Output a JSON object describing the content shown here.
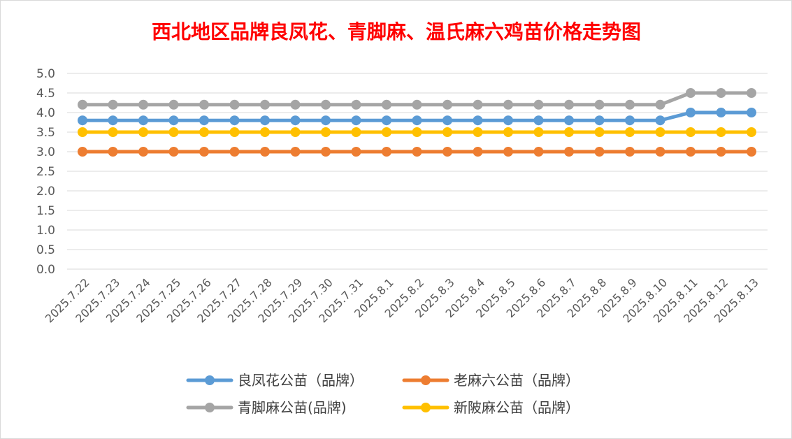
{
  "chart_data": {
    "type": "line",
    "title": "西北地区品牌良凤花、青脚麻、温氏麻六鸡苗价格走势图",
    "xlabel": "",
    "ylabel": "",
    "ylim": [
      0,
      5
    ],
    "yticks": [
      "0.0",
      "0.5",
      "1.0",
      "1.5",
      "2.0",
      "2.5",
      "3.0",
      "3.5",
      "4.0",
      "4.5",
      "5.0"
    ],
    "grid": true,
    "legend_position": "bottom",
    "categories": [
      "2025.7.22",
      "2025.7.23",
      "2025.7.24",
      "2025.7.25",
      "2025.7.26",
      "2025.7.27",
      "2025.7.28",
      "2025.7.29",
      "2025.7.30",
      "2025.7.31",
      "2025.8.1",
      "2025.8.2",
      "2025.8.3",
      "2025.8.4",
      "2025.8.5",
      "2025.8.6",
      "2025.8.7",
      "2025.8.8",
      "2025.8.9",
      "2025.8.10",
      "2025.8.11",
      "2025.8.12",
      "2025.8.13"
    ],
    "series": [
      {
        "name": "良凤花公苗（品牌）",
        "color": "#5b9bd5",
        "values": [
          3.8,
          3.8,
          3.8,
          3.8,
          3.8,
          3.8,
          3.8,
          3.8,
          3.8,
          3.8,
          3.8,
          3.8,
          3.8,
          3.8,
          3.8,
          3.8,
          3.8,
          3.8,
          3.8,
          3.8,
          4.0,
          4.0,
          4.0
        ]
      },
      {
        "name": "老麻六公苗（品牌）",
        "color": "#ed7d31",
        "values": [
          3.0,
          3.0,
          3.0,
          3.0,
          3.0,
          3.0,
          3.0,
          3.0,
          3.0,
          3.0,
          3.0,
          3.0,
          3.0,
          3.0,
          3.0,
          3.0,
          3.0,
          3.0,
          3.0,
          3.0,
          3.0,
          3.0,
          3.0
        ]
      },
      {
        "name": "青脚麻公苗(品牌)",
        "color": "#a5a5a5",
        "values": [
          4.2,
          4.2,
          4.2,
          4.2,
          4.2,
          4.2,
          4.2,
          4.2,
          4.2,
          4.2,
          4.2,
          4.2,
          4.2,
          4.2,
          4.2,
          4.2,
          4.2,
          4.2,
          4.2,
          4.2,
          4.5,
          4.5,
          4.5
        ]
      },
      {
        "name": "新陂麻公苗（品牌）",
        "color": "#ffc000",
        "values": [
          3.5,
          3.5,
          3.5,
          3.5,
          3.5,
          3.5,
          3.5,
          3.5,
          3.5,
          3.5,
          3.5,
          3.5,
          3.5,
          3.5,
          3.5,
          3.5,
          3.5,
          3.5,
          3.5,
          3.5,
          3.5,
          3.5,
          3.5
        ]
      }
    ],
    "draw_order": [
      2,
      0,
      3,
      1
    ]
  }
}
